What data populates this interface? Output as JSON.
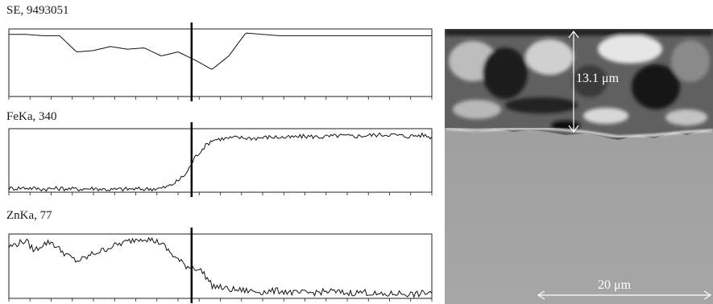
{
  "chart_data": [
    {
      "type": "line",
      "title": "SE, 9493051",
      "x": [
        0,
        4,
        8,
        12,
        16,
        20,
        24,
        28,
        32,
        36,
        40,
        44,
        48,
        52,
        56,
        60,
        64,
        68,
        72,
        76,
        80,
        84,
        88,
        92,
        96,
        100
      ],
      "values": [
        0.92,
        0.92,
        0.9,
        0.9,
        0.66,
        0.68,
        0.74,
        0.7,
        0.72,
        0.6,
        0.66,
        0.54,
        0.4,
        0.6,
        0.94,
        0.92,
        0.9,
        0.9,
        0.9,
        0.9,
        0.9,
        0.9,
        0.9,
        0.9,
        0.9,
        0.9
      ],
      "ylim": [
        0,
        1
      ],
      "marker_x": 43.2
    },
    {
      "type": "line",
      "title": "FeKa, 340",
      "x": [
        0,
        4,
        8,
        12,
        16,
        20,
        24,
        28,
        32,
        36,
        38,
        40,
        42,
        44,
        46,
        48,
        50,
        54,
        58,
        62,
        66,
        70,
        74,
        78,
        82,
        86,
        90,
        94,
        98,
        100
      ],
      "values": [
        0.06,
        0.07,
        0.05,
        0.06,
        0.05,
        0.06,
        0.04,
        0.05,
        0.05,
        0.06,
        0.1,
        0.18,
        0.3,
        0.55,
        0.7,
        0.82,
        0.84,
        0.86,
        0.85,
        0.87,
        0.86,
        0.88,
        0.87,
        0.89,
        0.88,
        0.9,
        0.91,
        0.88,
        0.9,
        0.86
      ],
      "ylim": [
        0,
        1
      ],
      "marker_x": 43.2
    },
    {
      "type": "line",
      "title": "ZnKa, 77",
      "x": [
        0,
        2,
        4,
        6,
        8,
        10,
        12,
        14,
        16,
        18,
        20,
        22,
        24,
        26,
        28,
        30,
        32,
        34,
        36,
        38,
        40,
        42,
        44,
        46,
        48,
        52,
        56,
        60,
        64,
        68,
        72,
        76,
        80,
        84,
        88,
        92,
        96,
        100
      ],
      "values": [
        0.8,
        0.85,
        0.9,
        0.74,
        0.84,
        0.88,
        0.76,
        0.66,
        0.58,
        0.62,
        0.7,
        0.74,
        0.8,
        0.84,
        0.88,
        0.92,
        0.94,
        0.9,
        0.86,
        0.72,
        0.6,
        0.5,
        0.48,
        0.4,
        0.2,
        0.14,
        0.12,
        0.1,
        0.12,
        0.08,
        0.09,
        0.11,
        0.08,
        0.1,
        0.05,
        0.08,
        0.06,
        0.1
      ],
      "ylim": [
        0,
        1
      ],
      "marker_x": 43.2
    }
  ],
  "sem_image": {
    "thickness_label": "13.1 μm",
    "scale_label": "20 μm",
    "colors": {
      "coating": "#5c5c5c",
      "substrate": "#a3a3a3",
      "annotation": "#ffffff"
    }
  }
}
